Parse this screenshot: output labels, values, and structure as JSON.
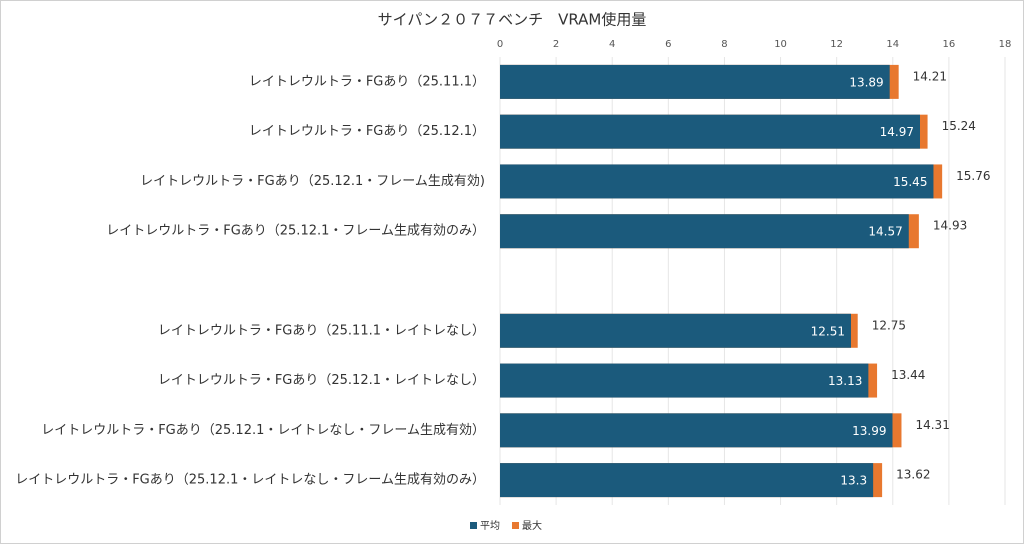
{
  "chart_data": {
    "type": "bar",
    "orientation": "horizontal",
    "overlap": true,
    "title": "サイパン２０７７ベンチ　VRAM使用量",
    "categories": [
      "レイトレウルトラ・FGあり（25.11.1）",
      "レイトレウルトラ・FGあり（25.12.1）",
      "レイトレウルトラ・FGあり（25.12.1・フレーム生成有効)",
      "レイトレウルトラ・FGあり（25.12.1・フレーム生成有効のみ）",
      null,
      "レイトレウルトラ・FGあり（25.11.1・レイトレなし）",
      "レイトレウルトラ・FGあり（25.12.1・レイトレなし）",
      "レイトレウルトラ・FGあり（25.12.1・レイトレなし・フレーム生成有効）",
      "レイトレウルトラ・FGあり（25.12.1・レイトレなし・フレーム生成有効のみ）"
    ],
    "series": [
      {
        "name": "平均",
        "color": "#1b5a7c",
        "values": [
          13.89,
          14.97,
          15.45,
          14.57,
          null,
          12.51,
          13.13,
          13.99,
          13.3
        ]
      },
      {
        "name": "最大",
        "color": "#e8782f",
        "values": [
          14.21,
          15.24,
          15.76,
          14.93,
          null,
          12.75,
          13.44,
          14.31,
          13.62
        ]
      }
    ],
    "xlim": [
      0,
      18
    ],
    "xticks": [
      0,
      2,
      4,
      6,
      8,
      10,
      12,
      14,
      16,
      18
    ],
    "grid": true,
    "legend": "bottom"
  }
}
